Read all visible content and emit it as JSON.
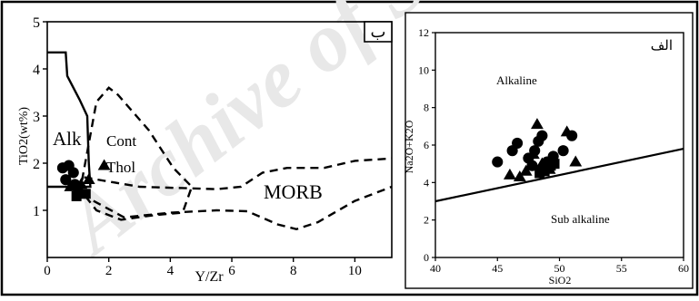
{
  "watermark": "Archive of SID",
  "chart_data": [
    {
      "type": "scatter",
      "panel_label": "ب",
      "xlabel": "Y/Zr",
      "ylabel": "TiO2(wt%)",
      "xlim": [
        0,
        11.2
      ],
      "ylim": [
        0,
        5
      ],
      "x_ticks": [
        "0",
        "2",
        "4",
        "6",
        "8",
        "10"
      ],
      "y_ticks": [
        "1",
        "2",
        "3",
        "4",
        "5"
      ],
      "field_labels": [
        "Alk",
        "Cont",
        "Thol",
        "MORB"
      ],
      "fields": {
        "alk_boundary": [
          [
            0,
            4.35
          ],
          [
            0.6,
            4.35
          ],
          [
            0.65,
            3.85
          ],
          [
            1.05,
            3.35
          ],
          [
            1.3,
            3.0
          ],
          [
            1.35,
            2.0
          ],
          [
            1.4,
            1.5
          ],
          [
            0,
            1.5
          ]
        ],
        "cont_thol_boundary": [
          [
            1.05,
            1.35
          ],
          [
            1.6,
            3.3
          ],
          [
            2.0,
            3.6
          ],
          [
            2.3,
            3.45
          ],
          [
            3.3,
            2.7
          ],
          [
            4.1,
            1.9
          ],
          [
            4.7,
            1.5
          ],
          [
            4.4,
            0.95
          ],
          [
            3.5,
            0.9
          ],
          [
            2.4,
            0.8
          ],
          [
            1.6,
            1.0
          ],
          [
            1.0,
            1.5
          ]
        ],
        "morb_boundary_upper": [
          [
            1.2,
            1.7
          ],
          [
            3.0,
            1.5
          ],
          [
            5.5,
            1.45
          ],
          [
            6.3,
            1.5
          ],
          [
            7.0,
            1.8
          ],
          [
            7.8,
            1.9
          ],
          [
            9.0,
            1.9
          ],
          [
            10.0,
            2.05
          ],
          [
            11.2,
            2.1
          ]
        ],
        "morb_boundary_lower": [
          [
            1.5,
            1.2
          ],
          [
            2.5,
            0.85
          ],
          [
            4.0,
            0.95
          ],
          [
            5.5,
            1.0
          ],
          [
            6.5,
            0.98
          ],
          [
            7.5,
            0.7
          ],
          [
            8.1,
            0.6
          ],
          [
            8.8,
            0.75
          ],
          [
            10.0,
            1.2
          ],
          [
            11.2,
            1.5
          ]
        ]
      },
      "series": [
        {
          "marker": "circle",
          "points": [
            [
              0.5,
              1.9
            ],
            [
              0.7,
              1.95
            ],
            [
              0.85,
              1.8
            ],
            [
              0.6,
              1.65
            ],
            [
              0.9,
              1.55
            ]
          ]
        },
        {
          "marker": "triangle",
          "points": [
            [
              1.35,
              1.65
            ],
            [
              1.85,
              1.95
            ],
            [
              0.75,
              1.5
            ],
            [
              1.1,
              1.55
            ]
          ]
        },
        {
          "marker": "square",
          "points": [
            [
              0.95,
              1.3
            ],
            [
              1.25,
              1.35
            ],
            [
              1.0,
              1.45
            ]
          ]
        }
      ]
    },
    {
      "type": "scatter",
      "panel_label": "الف",
      "xlabel": "SiO2",
      "ylabel": "Na2O+K2O",
      "xlim": [
        40,
        60
      ],
      "ylim": [
        0,
        12
      ],
      "x_ticks": [
        "40",
        "45",
        "50",
        "55",
        "60"
      ],
      "y_ticks": [
        "0",
        "2",
        "4",
        "6",
        "8",
        "10",
        "12"
      ],
      "field_labels": [
        "Alkaline",
        "Sub alkaline"
      ],
      "divider": [
        [
          40,
          3.0
        ],
        [
          60,
          5.8
        ]
      ],
      "series": [
        {
          "marker": "circle",
          "points": [
            [
              45.0,
              5.1
            ],
            [
              46.2,
              5.7
            ],
            [
              46.6,
              6.1
            ],
            [
              47.5,
              5.3
            ],
            [
              48.0,
              5.7
            ],
            [
              48.3,
              6.2
            ],
            [
              48.6,
              6.5
            ],
            [
              49.5,
              5.4
            ],
            [
              50.3,
              5.7
            ],
            [
              51.0,
              6.5
            ],
            [
              47.8,
              4.9
            ],
            [
              49.0,
              5.1
            ]
          ]
        },
        {
          "marker": "triangle",
          "points": [
            [
              46.0,
              4.4
            ],
            [
              46.8,
              4.3
            ],
            [
              47.3,
              4.6
            ],
            [
              48.2,
              7.1
            ],
            [
              48.6,
              5.0
            ],
            [
              49.2,
              4.7
            ],
            [
              50.6,
              6.7
            ],
            [
              51.3,
              5.1
            ],
            [
              47.9,
              5.5
            ]
          ]
        },
        {
          "marker": "square",
          "points": [
            [
              48.4,
              4.5
            ],
            [
              49.3,
              4.9
            ],
            [
              48.8,
              4.6
            ],
            [
              49.6,
              5.0
            ]
          ]
        }
      ]
    }
  ]
}
